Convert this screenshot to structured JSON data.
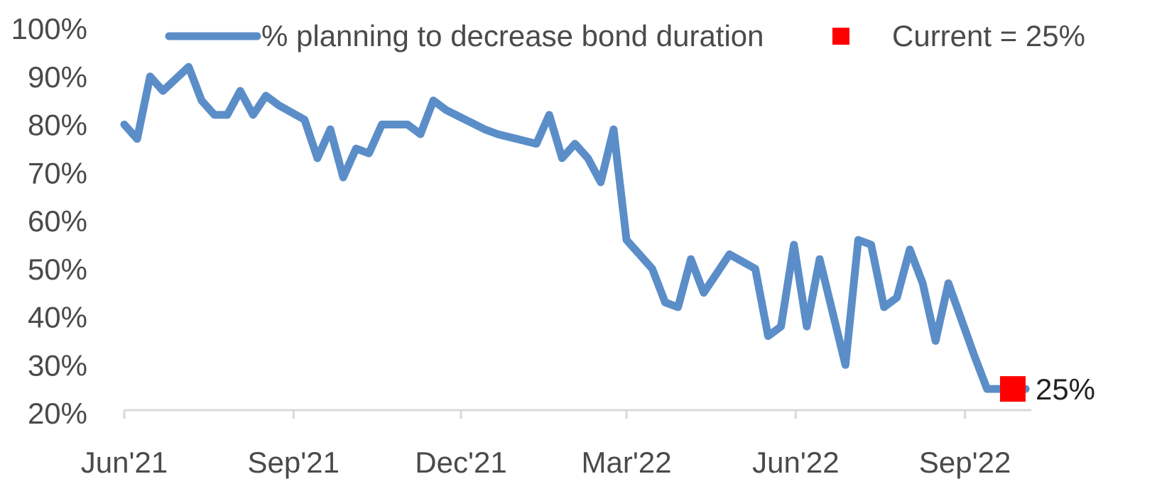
{
  "chart_data": {
    "type": "line",
    "title": "",
    "xlabel": "",
    "ylabel": "",
    "ylim": [
      20,
      100
    ],
    "y_ticks": [
      "20%",
      "30%",
      "40%",
      "50%",
      "60%",
      "70%",
      "80%",
      "90%",
      "100%"
    ],
    "x_ticks": [
      "Jun'21",
      "Sep'21",
      "Dec'21",
      "Mar'22",
      "Jun'22",
      "Sep'22"
    ],
    "grid": false,
    "legend_placement": "top",
    "series": [
      {
        "name": "% planning to decrease bond duration",
        "color": "#5b8ec8",
        "x": [
          "2021-06-01",
          "2021-06-08",
          "2021-06-15",
          "2021-06-22",
          "2021-07-06",
          "2021-07-13",
          "2021-07-20",
          "2021-07-27",
          "2021-08-03",
          "2021-08-10",
          "2021-08-17",
          "2021-08-24",
          "2021-09-07",
          "2021-09-14",
          "2021-09-21",
          "2021-09-28",
          "2021-10-05",
          "2021-10-12",
          "2021-10-19",
          "2021-10-26",
          "2021-11-02",
          "2021-11-09",
          "2021-11-16",
          "2021-11-23",
          "2021-12-14",
          "2021-12-21",
          "2022-01-11",
          "2022-01-18",
          "2022-01-25",
          "2022-02-01",
          "2022-02-08",
          "2022-02-15",
          "2022-02-22",
          "2022-03-01",
          "2022-03-08",
          "2022-03-15",
          "2022-03-22",
          "2022-03-29",
          "2022-04-05",
          "2022-04-12",
          "2022-04-19",
          "2022-04-26",
          "2022-05-10",
          "2022-05-17",
          "2022-05-24",
          "2022-05-31",
          "2022-06-07",
          "2022-06-14",
          "2022-06-28",
          "2022-07-05",
          "2022-07-12",
          "2022-07-19",
          "2022-07-26",
          "2022-08-02",
          "2022-08-09",
          "2022-08-16",
          "2022-08-23",
          "2022-09-06",
          "2022-09-13",
          "2022-09-20",
          "2022-09-27",
          "2022-10-04"
        ],
        "y": [
          80,
          77,
          90,
          87,
          92,
          85,
          82,
          82,
          87,
          82,
          86,
          84,
          81,
          73,
          79,
          69,
          75,
          74,
          80,
          80,
          80,
          78,
          85,
          83,
          79,
          78,
          76,
          82,
          73,
          76,
          73,
          68,
          79,
          56,
          53,
          50,
          43,
          42,
          52,
          45,
          49,
          53,
          50,
          36,
          38,
          55,
          38,
          52,
          30,
          56,
          55,
          42,
          44,
          54,
          47,
          35,
          47,
          32,
          25,
          25,
          25,
          25
        ]
      }
    ],
    "annotations": [
      {
        "type": "marker",
        "x": "2022-09-27",
        "y": 25,
        "label": "25%",
        "color": "#ff0000"
      }
    ],
    "legend": [
      {
        "label": "% planning to decrease bond duration",
        "kind": "line",
        "color": "#5b8ec8"
      },
      {
        "label": "Current = 25%",
        "kind": "square",
        "color": "#ff0000"
      }
    ]
  }
}
